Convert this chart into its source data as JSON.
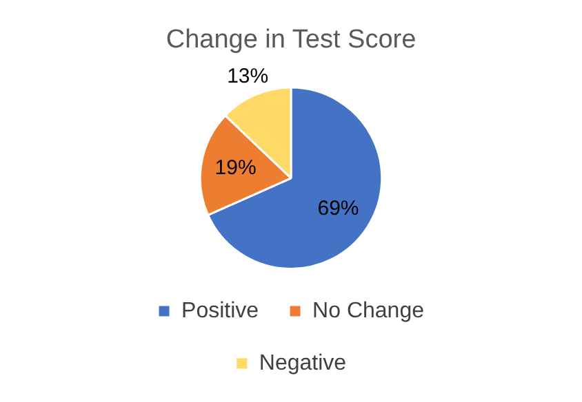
{
  "chart_data": {
    "type": "pie",
    "title": "Change in Test Score",
    "categories": [
      "Positive",
      "No Change",
      "Negative"
    ],
    "values": [
      69,
      19,
      13
    ],
    "value_labels": [
      "69%",
      "19%",
      "13%"
    ],
    "colors": [
      "#4472c4",
      "#ed7d31",
      "#ffd966"
    ],
    "legend": "bottom"
  }
}
